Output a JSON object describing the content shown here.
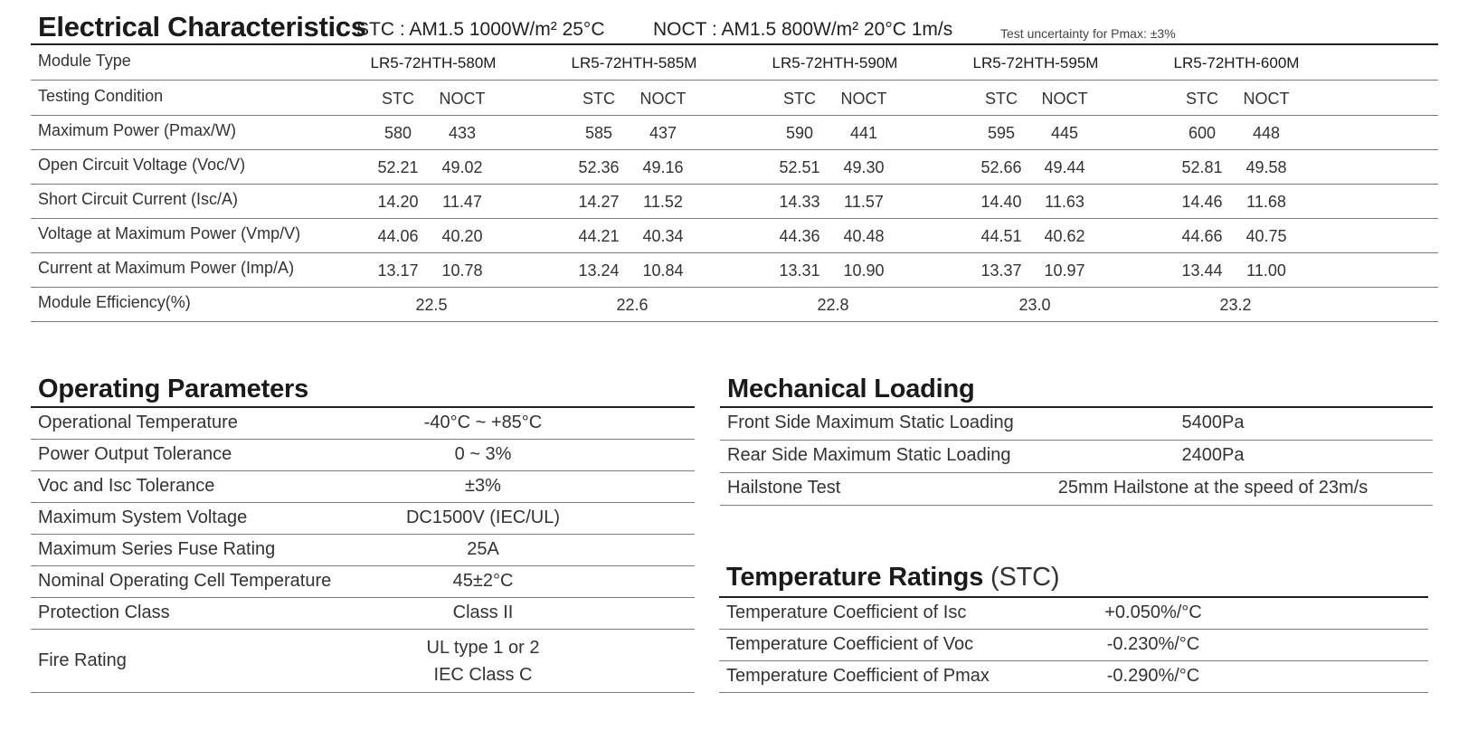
{
  "electrical": {
    "title": "Electrical Characteristics",
    "stc_condition": "STC : AM1.5   1000W/m²   25°C",
    "noct_condition": "NOCT : AM1.5   800W/m²   20°C   1m/s",
    "uncertainty": "Test uncertainty for Pmax: ±3%",
    "module_type_label": "Module Type",
    "modules": [
      "LR5-72HTH-580M",
      "LR5-72HTH-585M",
      "LR5-72HTH-590M",
      "LR5-72HTH-595M",
      "LR5-72HTH-600M"
    ],
    "testing_condition_label": "Testing Condition",
    "stc_label": "STC",
    "noct_label": "NOCT",
    "rows": [
      {
        "label": "Maximum Power (Pmax/W)",
        "values": [
          "580",
          "433",
          "585",
          "437",
          "590",
          "441",
          "595",
          "445",
          "600",
          "448"
        ]
      },
      {
        "label": "Open Circuit Voltage (Voc/V)",
        "values": [
          "52.21",
          "49.02",
          "52.36",
          "49.16",
          "52.51",
          "49.30",
          "52.66",
          "49.44",
          "52.81",
          "49.58"
        ]
      },
      {
        "label": "Short Circuit Current (Isc/A)",
        "values": [
          "14.20",
          "11.47",
          "14.27",
          "11.52",
          "14.33",
          "11.57",
          "14.40",
          "11.63",
          "14.46",
          "11.68"
        ]
      },
      {
        "label": "Voltage at Maximum Power (Vmp/V)",
        "values": [
          "44.06",
          "40.20",
          "44.21",
          "40.34",
          "44.36",
          "40.48",
          "44.51",
          "40.62",
          "44.66",
          "40.75"
        ]
      },
      {
        "label": "Current at Maximum Power (Imp/A)",
        "values": [
          "13.17",
          "10.78",
          "13.24",
          "10.84",
          "13.31",
          "10.90",
          "13.37",
          "10.97",
          "13.44",
          "11.00"
        ]
      }
    ],
    "efficiency_label": "Module Efficiency(%)",
    "efficiency": [
      "22.5",
      "22.6",
      "22.8",
      "23.0",
      "23.2"
    ]
  },
  "operating": {
    "title": "Operating Parameters",
    "rows": [
      {
        "label": "Operational Temperature",
        "value": "-40°C ~ +85°C"
      },
      {
        "label": "Power Output Tolerance",
        "value": "0 ~ 3%"
      },
      {
        "label": "Voc and Isc Tolerance",
        "value": "±3%"
      },
      {
        "label": "Maximum System Voltage",
        "value": "DC1500V (IEC/UL)"
      },
      {
        "label": "Maximum Series Fuse Rating",
        "value": "25A"
      },
      {
        "label": "Nominal Operating Cell Temperature",
        "value": "45±2°C"
      },
      {
        "label": "Protection Class",
        "value": "Class II"
      }
    ],
    "fire_rating_label": "Fire Rating",
    "fire_rating_lines": [
      "UL type 1 or 2",
      "IEC Class C"
    ]
  },
  "mechanical": {
    "title": "Mechanical Loading",
    "rows": [
      {
        "label": "Front Side Maximum Static Loading",
        "value": "5400Pa"
      },
      {
        "label": "Rear Side Maximum Static Loading",
        "value": "2400Pa"
      },
      {
        "label": "Hailstone Test",
        "value": "25mm Hailstone at the speed of 23m/s"
      }
    ]
  },
  "temperature": {
    "title": "Temperature Ratings",
    "title_suffix": "(STC)",
    "rows": [
      {
        "label": "Temperature Coefficient of  Isc",
        "value": "+0.050%/°C"
      },
      {
        "label": "Temperature Coefficient of  Voc",
        "value": "-0.230%/°C"
      },
      {
        "label": "Temperature Coefficient of  Pmax",
        "value": "-0.290%/°C"
      }
    ]
  }
}
